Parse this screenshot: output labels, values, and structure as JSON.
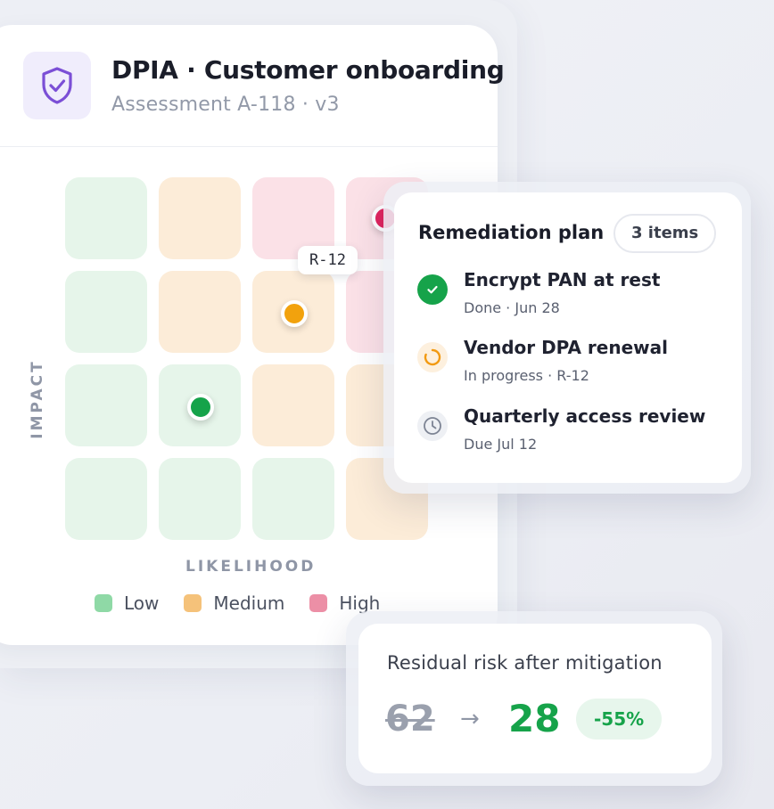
{
  "header": {
    "title": "DPIA · Customer onboarding",
    "subtitle": "Assessment A-118 · v3",
    "icon": "shield-check-icon",
    "icon_color": "#7b4fd6"
  },
  "matrix": {
    "x_axis_label": "LIKELIHOOD",
    "y_axis_label": "IMPACT",
    "rows": [
      [
        "low",
        "medium",
        "high",
        "high"
      ],
      [
        "low",
        "medium",
        "medium",
        "high"
      ],
      [
        "low",
        "low",
        "medium",
        "medium"
      ],
      [
        "low",
        "low",
        "low",
        "medium"
      ]
    ],
    "markers": [
      {
        "label": "R-12",
        "level": "medium",
        "color": "#f2a20d"
      },
      {
        "level": "low",
        "color": "#15a34a"
      },
      {
        "level": "high",
        "color": "#e0245e"
      }
    ],
    "marker_tag": "R-12",
    "legend": [
      {
        "label": "Low",
        "color": "#8fd9a6"
      },
      {
        "label": "Medium",
        "color": "#f5c27a"
      },
      {
        "label": "High",
        "color": "#ec8fa6"
      }
    ]
  },
  "remediation": {
    "title": "Remediation plan",
    "count_label": "3 items",
    "items": [
      {
        "title": "Encrypt PAN at rest",
        "meta": "Done · Jun 28",
        "status": "done",
        "icon": "check-circle-icon"
      },
      {
        "title": "Vendor DPA renewal",
        "meta": "In progress · R-12",
        "status": "in-progress",
        "icon": "progress-spinner-icon"
      },
      {
        "title": "Quarterly access review",
        "meta": "Due Jul 12",
        "status": "scheduled",
        "icon": "clock-icon"
      }
    ]
  },
  "residual": {
    "title": "Residual risk after mitigation",
    "before": "62",
    "after": "28",
    "change": "-55%",
    "accent": "#16a34a"
  }
}
